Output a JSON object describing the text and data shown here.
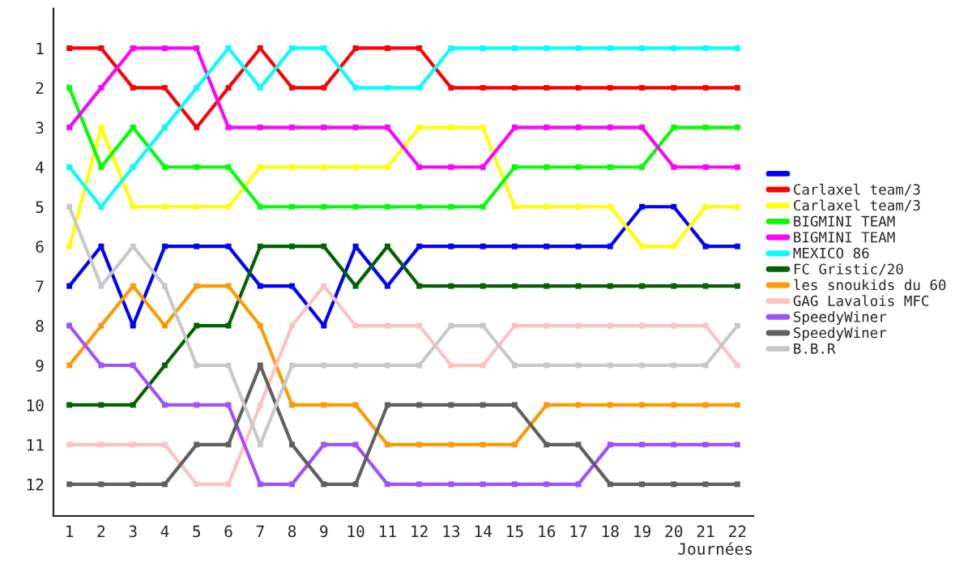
{
  "chart_data": {
    "type": "line",
    "xlabel": "Journées",
    "x": [
      1,
      2,
      3,
      4,
      5,
      6,
      7,
      8,
      9,
      10,
      11,
      12,
      13,
      14,
      15,
      16,
      17,
      18,
      19,
      20,
      21,
      22
    ],
    "xlim": [
      0.5,
      22.5
    ],
    "xticks": [
      1,
      2,
      3,
      4,
      5,
      6,
      7,
      8,
      9,
      10,
      11,
      12,
      13,
      14,
      15,
      16,
      17,
      18,
      19,
      20,
      21,
      22
    ],
    "ylim": [
      12.8,
      0
    ],
    "yticks": [
      1,
      2,
      3,
      4,
      5,
      6,
      7,
      8,
      9,
      10,
      11,
      12
    ],
    "grid": false,
    "legend": "right",
    "marker": "square",
    "line_style": "solid",
    "series": [
      {
        "color": "#0000ff",
        "values": [
          7,
          6,
          8,
          6,
          6,
          6,
          7,
          7,
          8,
          6,
          7,
          6,
          6,
          6,
          6,
          6,
          6,
          6,
          5,
          5,
          6,
          6
        ]
      },
      {
        "name": "Carlaxel team/3",
        "color": "#ff0000",
        "values": [
          1,
          1,
          2,
          2,
          3,
          2,
          1,
          2,
          2,
          1,
          1,
          1,
          2,
          2,
          2,
          2,
          2,
          2,
          2,
          2,
          2,
          2
        ]
      },
      {
        "name": "Carlaxel team/3",
        "color": "#ffff00",
        "values": [
          6,
          3,
          5,
          5,
          5,
          5,
          4,
          4,
          4,
          4,
          4,
          3,
          3,
          3,
          5,
          5,
          5,
          5,
          6,
          6,
          5,
          5
        ]
      },
      {
        "name": "BIGMINI TEAM",
        "color": "#00ff00",
        "values": [
          2,
          4,
          3,
          4,
          4,
          4,
          5,
          5,
          5,
          5,
          5,
          5,
          5,
          5,
          4,
          4,
          4,
          4,
          4,
          3,
          3,
          3
        ]
      },
      {
        "name": "BIGMINI TEAM",
        "color": "#ff00ff",
        "values": [
          3,
          2,
          1,
          1,
          1,
          3,
          3,
          3,
          3,
          3,
          3,
          4,
          4,
          4,
          3,
          3,
          3,
          3,
          3,
          4,
          4,
          4
        ]
      },
      {
        "name": "MEXICO 86",
        "color": "#00ffff",
        "values": [
          4,
          5,
          4,
          3,
          2,
          1,
          2,
          1,
          1,
          2,
          2,
          2,
          1,
          1,
          1,
          1,
          1,
          1,
          1,
          1,
          1,
          1
        ]
      },
      {
        "name": "FC Gristic/20",
        "color": "#006400",
        "values": [
          10,
          10,
          10,
          9,
          8,
          8,
          6,
          6,
          6,
          7,
          6,
          7,
          7,
          7,
          7,
          7,
          7,
          7,
          7,
          7,
          7,
          7
        ]
      },
      {
        "name": "les snoukids du 60",
        "color": "#ff9900",
        "values": [
          9,
          8,
          7,
          8,
          7,
          7,
          8,
          10,
          10,
          10,
          11,
          11,
          11,
          11,
          11,
          10,
          10,
          10,
          10,
          10,
          10,
          10
        ]
      },
      {
        "name": "GAG Lavalois MFC",
        "color": "#ffc0c0",
        "values": [
          11,
          11,
          11,
          11,
          12,
          12,
          10,
          8,
          7,
          8,
          8,
          8,
          9,
          9,
          8,
          8,
          8,
          8,
          8,
          8,
          8,
          9
        ]
      },
      {
        "name": "SpeedyWiner",
        "color": "#a050ff",
        "values": [
          8,
          9,
          9,
          10,
          10,
          10,
          12,
          12,
          11,
          11,
          12,
          12,
          12,
          12,
          12,
          12,
          12,
          11,
          11,
          11,
          11,
          11
        ]
      },
      {
        "name": "SpeedyWiner",
        "color": "#606060",
        "values": [
          12,
          12,
          12,
          12,
          11,
          11,
          9,
          11,
          12,
          12,
          10,
          10,
          10,
          10,
          10,
          11,
          11,
          12,
          12,
          12,
          12,
          12
        ]
      },
      {
        "name": "B.B.R",
        "color": "#c8c8c8",
        "values": [
          5,
          7,
          6,
          7,
          9,
          9,
          11,
          9,
          9,
          9,
          9,
          9,
          8,
          8,
          9,
          9,
          9,
          9,
          9,
          9,
          9,
          8
        ]
      }
    ]
  }
}
